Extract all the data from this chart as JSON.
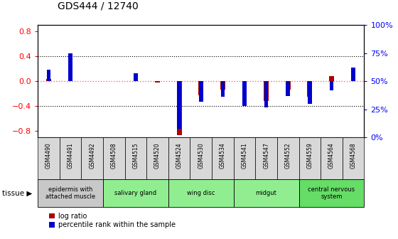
{
  "title": "GDS444 / 12740",
  "samples": [
    "GSM4490",
    "GSM4491",
    "GSM4492",
    "GSM4508",
    "GSM4515",
    "GSM4520",
    "GSM4524",
    "GSM4530",
    "GSM4534",
    "GSM4541",
    "GSM4547",
    "GSM4552",
    "GSM4559",
    "GSM4564",
    "GSM4568"
  ],
  "log_ratio": [
    0.04,
    0.44,
    0.0,
    0.0,
    0.04,
    -0.02,
    -0.86,
    -0.22,
    -0.13,
    -0.28,
    -0.32,
    -0.13,
    -0.25,
    0.08,
    0.04
  ],
  "percentile": [
    60,
    75,
    50,
    50,
    57,
    50,
    8,
    32,
    36,
    28,
    27,
    37,
    30,
    42,
    62
  ],
  "tissue_groups": [
    {
      "label": "epidermis with\nattached muscle",
      "start": 0,
      "end": 3,
      "color": "#c8c8c8"
    },
    {
      "label": "salivary gland",
      "start": 3,
      "end": 6,
      "color": "#90ee90"
    },
    {
      "label": "wing disc",
      "start": 6,
      "end": 9,
      "color": "#90ee90"
    },
    {
      "label": "midgut",
      "start": 9,
      "end": 12,
      "color": "#90ee90"
    },
    {
      "label": "central nervous\nsystem",
      "start": 12,
      "end": 15,
      "color": "#66dd66"
    }
  ],
  "ylim_left": [
    -0.9,
    0.9
  ],
  "ylim_right": [
    0,
    100
  ],
  "yticks_left": [
    -0.8,
    -0.4,
    0.0,
    0.4,
    0.8
  ],
  "yticks_right": [
    0,
    25,
    50,
    75,
    100
  ],
  "bar_color_red": "#aa0000",
  "bar_color_blue": "#0000cc",
  "zero_line_color": "#ff6666",
  "background_color": "#ffffff"
}
